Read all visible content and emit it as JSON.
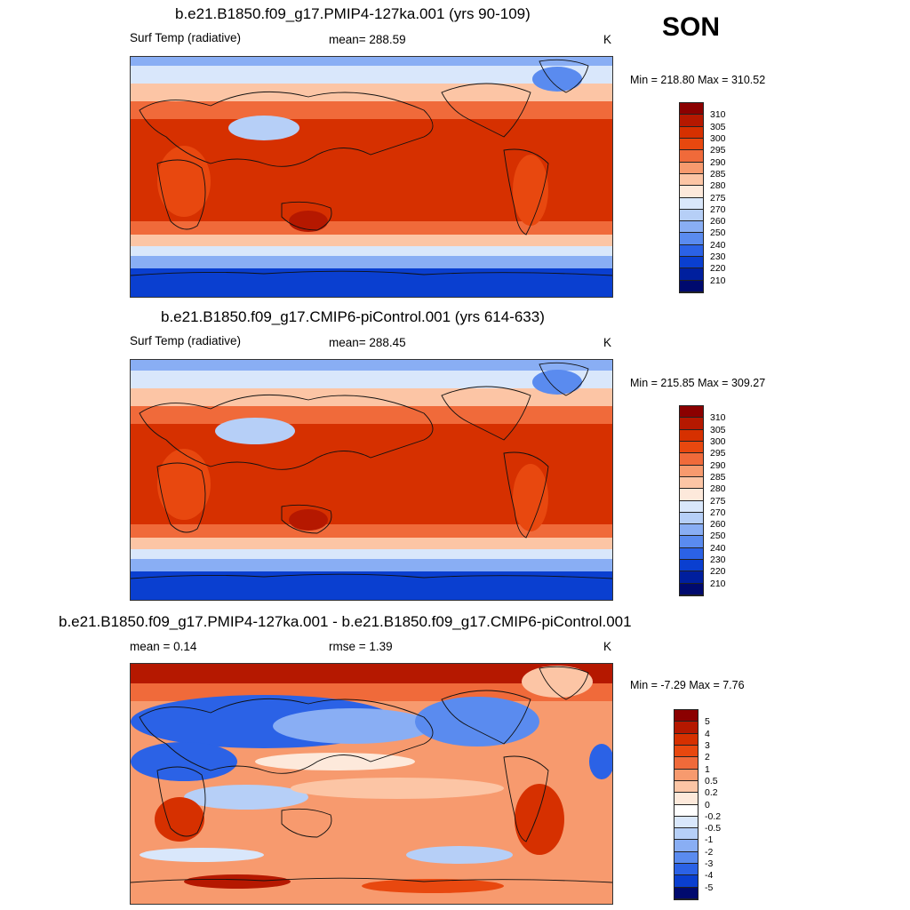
{
  "season": "SON",
  "panels": [
    {
      "title": "b.e21.B1850.f09_g17.PMIP4-127ka.001 (yrs 90-109)",
      "left_label": "Surf Temp (radiative)",
      "center_label": "mean= 288.59",
      "units": "K",
      "minmax": "Min = 218.80 Max = 310.52",
      "colorbar": {
        "labels": [
          "310",
          "305",
          "300",
          "295",
          "290",
          "285",
          "280",
          "275",
          "270",
          "260",
          "250",
          "240",
          "230",
          "220",
          "210"
        ],
        "colors": [
          "#8b0000",
          "#b51800",
          "#d63000",
          "#e8480f",
          "#f06a3a",
          "#f79a6e",
          "#fcc5a5",
          "#fde9db",
          "#d9e7fb",
          "#b6cff7",
          "#89aef4",
          "#5a8bef",
          "#2b62e6",
          "#0a3fd0",
          "#001f9e",
          "#000a6e"
        ]
      }
    },
    {
      "title": "b.e21.B1850.f09_g17.CMIP6-piControl.001 (yrs 614-633)",
      "left_label": "Surf Temp (radiative)",
      "center_label": "mean= 288.45",
      "units": "K",
      "minmax": "Min = 215.85 Max = 309.27",
      "colorbar": {
        "labels": [
          "310",
          "305",
          "300",
          "295",
          "290",
          "285",
          "280",
          "275",
          "270",
          "260",
          "250",
          "240",
          "230",
          "220",
          "210"
        ],
        "colors": [
          "#8b0000",
          "#b51800",
          "#d63000",
          "#e8480f",
          "#f06a3a",
          "#f79a6e",
          "#fcc5a5",
          "#fde9db",
          "#d9e7fb",
          "#b6cff7",
          "#89aef4",
          "#5a8bef",
          "#2b62e6",
          "#0a3fd0",
          "#001f9e",
          "#000a6e"
        ]
      }
    },
    {
      "title": "b.e21.B1850.f09_g17.PMIP4-127ka.001 - b.e21.B1850.f09_g17.CMIP6-piControl.001",
      "left_label": "mean =   0.14",
      "center_label": "rmse =   1.39",
      "units": "K",
      "minmax": "Min =  -7.29 Max =   7.76",
      "colorbar": {
        "labels": [
          "5",
          "4",
          "3",
          "2",
          "1",
          "0.5",
          "0.2",
          "0",
          "-0.2",
          "-0.5",
          "-1",
          "-2",
          "-3",
          "-4",
          "-5"
        ],
        "colors": [
          "#8b0000",
          "#b51800",
          "#d63000",
          "#e8480f",
          "#f06a3a",
          "#f79a6e",
          "#fcc5a5",
          "#fde9db",
          "#ffffff",
          "#d9e7fb",
          "#b6cff7",
          "#89aef4",
          "#5a8bef",
          "#2b62e6",
          "#0a3fd0",
          "#000a6e"
        ]
      }
    }
  ],
  "colors": {
    "polar_cold": "#0a3fd0",
    "cold": "#5a8bef",
    "cool": "#b6cff7",
    "mild": "#fcc5a5",
    "warm": "#f06a3a",
    "hot": "#d63000",
    "land_outline": "#111111"
  }
}
